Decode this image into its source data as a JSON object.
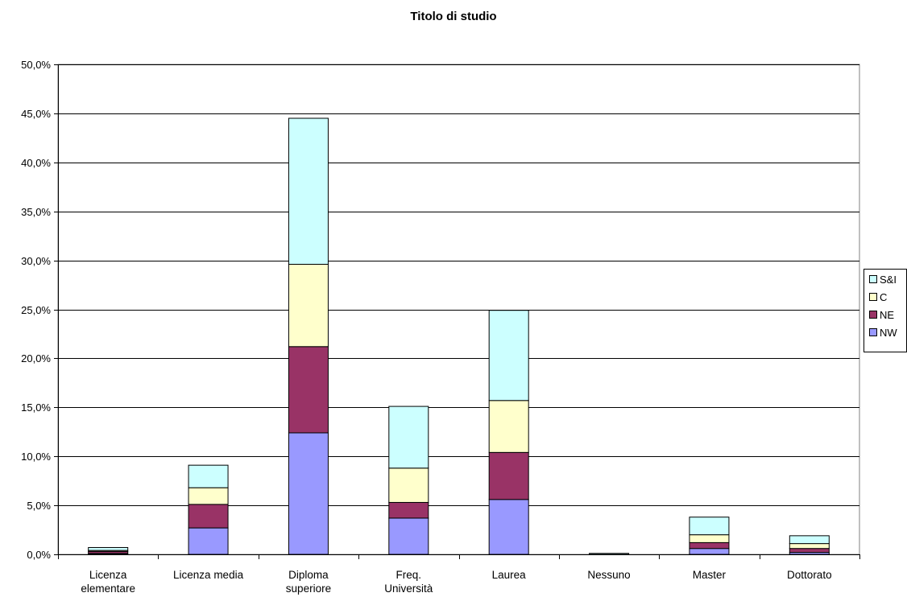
{
  "chart_data": {
    "type": "bar",
    "stacked": true,
    "title": "Titolo di studio",
    "xlabel": "",
    "ylabel": "",
    "ylim": [
      0,
      50
    ],
    "y_ticks": [
      "0,0%",
      "5,0%",
      "10,0%",
      "15,0%",
      "20,0%",
      "25,0%",
      "30,0%",
      "35,0%",
      "40,0%",
      "45,0%",
      "50,0%"
    ],
    "grid": true,
    "legend_position": "right",
    "categories": [
      [
        "Licenza",
        "elementare"
      ],
      [
        "Licenza media"
      ],
      [
        "Diploma",
        "superiore"
      ],
      [
        "Freq.",
        "Università"
      ],
      [
        "Laurea"
      ],
      [
        "Nessuno"
      ],
      [
        "Master"
      ],
      [
        "Dottorato"
      ]
    ],
    "series": [
      {
        "name": "NW",
        "color": "#9999ff",
        "values": [
          0.1,
          2.7,
          12.4,
          3.7,
          5.6,
          0.0,
          0.6,
          0.2
        ]
      },
      {
        "name": "NE",
        "color": "#993366",
        "values": [
          0.2,
          2.4,
          8.8,
          1.6,
          4.8,
          0.0,
          0.6,
          0.4
        ]
      },
      {
        "name": "C",
        "color": "#ffffcc",
        "values": [
          0.1,
          1.7,
          8.4,
          3.5,
          5.3,
          0.0,
          0.8,
          0.5
        ]
      },
      {
        "name": "S&I",
        "color": "#ccffff",
        "values": [
          0.3,
          2.3,
          14.9,
          6.3,
          9.2,
          0.1,
          1.8,
          0.8
        ]
      }
    ]
  }
}
